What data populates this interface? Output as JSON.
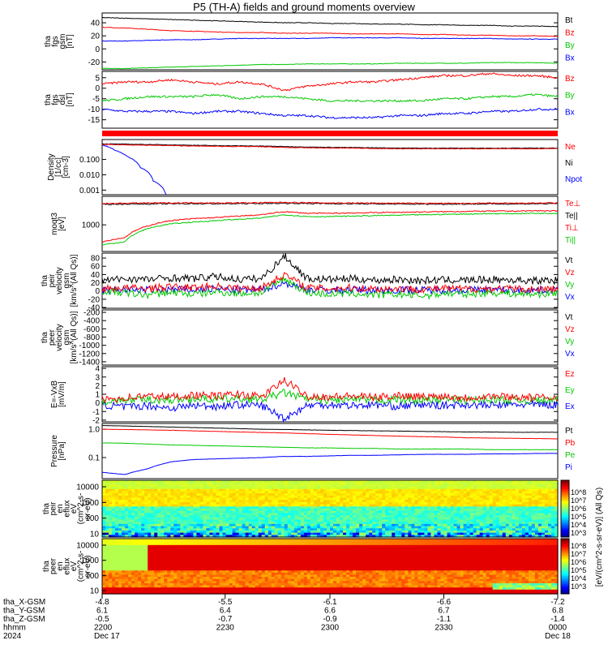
{
  "title": "P5 (TH-A) fields and ground moments overview",
  "colors": {
    "black": "#000000",
    "red": "#ff0000",
    "green": "#00c800",
    "blue": "#0000ff",
    "frame": "#000000"
  },
  "chart_data": [
    {
      "type": "line",
      "panel": "fgs-gsm",
      "ylabel": [
        "tha",
        "fgs",
        "gsm",
        "[nT]"
      ],
      "ylim": [
        -32,
        55
      ],
      "yticks": [
        40,
        20,
        0,
        -20
      ],
      "series": [
        {
          "name": "Bt",
          "color": "red_black",
          "values": [
            48,
            47,
            46,
            45,
            44,
            43,
            42,
            41,
            40,
            40,
            39,
            39,
            38,
            38,
            37,
            37,
            36,
            36,
            35,
            35,
            34
          ]
        },
        {
          "name": "Bz",
          "values": [
            33,
            32,
            30,
            28,
            27,
            26,
            25,
            25,
            24,
            24,
            24,
            23,
            23,
            23,
            22,
            22,
            21,
            21,
            20,
            20,
            19
          ]
        },
        {
          "name": "By",
          "values": [
            -30,
            -30,
            -29,
            -28,
            -27,
            -26,
            -25,
            -24,
            -24,
            -23,
            -23,
            -23,
            -23,
            -22,
            -22,
            -22,
            -22,
            -21,
            -21,
            -21,
            -22
          ]
        },
        {
          "name": "Bx",
          "values": [
            12,
            12,
            13,
            14,
            14,
            15,
            16,
            16,
            16,
            16,
            17,
            17,
            17,
            17,
            16,
            16,
            16,
            16,
            15,
            15,
            15
          ]
        }
      ]
    },
    {
      "type": "line",
      "panel": "fgs-dsl",
      "ylabel": [
        "tha",
        "fgs",
        "dsl",
        "[nT]"
      ],
      "ylim": [
        -19,
        8
      ],
      "yticks": [
        5,
        0,
        -5,
        -10,
        -15
      ],
      "series": [
        {
          "name": "Bz",
          "values": [
            2,
            3,
            3,
            4,
            3,
            2,
            3,
            2,
            -1,
            1,
            2,
            3,
            3,
            4,
            5,
            6,
            6,
            7,
            6,
            6,
            5
          ]
        },
        {
          "name": "By",
          "values": [
            -6,
            -5,
            -4,
            -4,
            -4,
            -3,
            -5,
            -4,
            -4,
            -5,
            -6,
            -6,
            -6,
            -6,
            -6,
            -5,
            -5,
            -4,
            -4,
            -3,
            -4
          ]
        },
        {
          "name": "Bx",
          "values": [
            -10,
            -11,
            -11,
            -11,
            -12,
            -11,
            -11,
            -12,
            -13,
            -13,
            -14,
            -14,
            -14,
            -13,
            -13,
            -12,
            -12,
            -11,
            -11,
            -10,
            -10
          ]
        }
      ]
    },
    {
      "type": "line",
      "panel": "density",
      "ylabel": [
        "Density",
        "[1/cc]",
        "[cm-3]"
      ],
      "yscale": "log",
      "ylim": [
        0.0005,
        2.0
      ],
      "ytick_labels": [
        "0.100",
        "0.010",
        "0.001"
      ],
      "series": [
        {
          "name": "Ne",
          "values": [
            0.95,
            0.9,
            0.85,
            0.8,
            0.75,
            0.72,
            0.7,
            0.68,
            0.6,
            0.58,
            0.55,
            0.55,
            0.52,
            0.5,
            0.5,
            0.5,
            0.5,
            0.5,
            0.5,
            0.5,
            0.52
          ]
        },
        {
          "name": "Ni",
          "values": [
            1.05,
            1.0,
            0.95,
            0.9,
            0.85,
            0.8,
            0.78,
            0.75,
            0.7,
            0.65,
            0.62,
            0.6,
            0.58,
            0.56,
            0.55,
            0.55,
            0.55,
            0.55,
            0.55,
            0.55,
            0.55
          ]
        },
        {
          "name": "Npot",
          "values": [
            0.9,
            0.4,
            0.15,
            0.03,
            0.004,
            0.0005
          ]
        }
      ]
    },
    {
      "type": "line",
      "panel": "temperature",
      "ylabel": [
        "moqt3",
        "[eV]"
      ],
      "yscale": "log",
      "ylim": [
        80,
        15000
      ],
      "ytick_labels": [
        "1000"
      ],
      "series": [
        {
          "name": "Te⊥",
          "values": [
            7500,
            7800,
            8000,
            8000,
            8200,
            8000,
            8100,
            8200,
            8500,
            8200,
            8000,
            8000,
            7900,
            7800,
            7800,
            7700,
            7700,
            7800,
            7800,
            7900,
            8000
          ]
        },
        {
          "name": "Te||",
          "values": [
            7000,
            7200,
            7300,
            7400,
            7500,
            7400,
            7500,
            7600,
            7800,
            7600,
            7500,
            7400,
            7300,
            7200,
            7200,
            7200,
            7200,
            7300,
            7300,
            7400,
            7500
          ]
        },
        {
          "name": "Ti⊥",
          "values": [
            200,
            300,
            900,
            1500,
            1800,
            2000,
            2300,
            2600,
            3500,
            3000,
            3000,
            3100,
            3200,
            3300,
            3400,
            3500,
            3600,
            3700,
            3700,
            3800,
            3800
          ]
        },
        {
          "name": "Ti||",
          "values": [
            150,
            200,
            700,
            1100,
            1300,
            1500,
            1700,
            1900,
            2600,
            2200,
            2200,
            2300,
            2400,
            2500,
            2600,
            2700,
            2800,
            2900,
            2900,
            3000,
            3000
          ]
        }
      ]
    },
    {
      "type": "line",
      "panel": "peir-velocity",
      "ylabel": [
        "tha",
        "peir",
        "velocity",
        "gsm",
        "[km/s^(All Qs)]"
      ],
      "ylim": [
        -42,
        92
      ],
      "yticks": [
        80,
        60,
        40,
        20,
        0,
        -20,
        -40
      ],
      "series": [
        {
          "name": "Vt",
          "values": [
            25,
            30,
            28,
            32,
            30,
            35,
            28,
            30,
            85,
            30,
            28,
            30,
            26,
            28,
            25,
            27,
            26,
            28,
            27,
            25,
            26
          ]
        },
        {
          "name": "Vz",
          "values": [
            5,
            8,
            6,
            10,
            8,
            12,
            6,
            8,
            40,
            8,
            6,
            8,
            5,
            6,
            4,
            6,
            5,
            6,
            5,
            4,
            5
          ]
        },
        {
          "name": "Vy",
          "values": [
            0,
            -5,
            -10,
            -3,
            -8,
            -2,
            -6,
            -4,
            30,
            -4,
            -8,
            -6,
            -10,
            -8,
            -12,
            -6,
            -8,
            -4,
            -6,
            -8,
            -5
          ]
        },
        {
          "name": "Vx",
          "values": [
            2,
            3,
            2,
            4,
            3,
            5,
            2,
            3,
            20,
            3,
            2,
            3,
            2,
            3,
            2,
            3,
            2,
            3,
            2,
            2,
            2
          ]
        }
      ]
    },
    {
      "type": "line",
      "panel": "peer-velocity",
      "ylabel": [
        "tha",
        "peer",
        "velocity",
        "gsm",
        "[km/s^(All Qs)]"
      ],
      "ylim": [
        -1480,
        -140
      ],
      "yticks": [
        -200,
        -400,
        -600,
        -800,
        -1000,
        -1200,
        -1400
      ],
      "series": [
        {
          "name": "Vt",
          "values": []
        },
        {
          "name": "Vz",
          "values": []
        },
        {
          "name": "Vy",
          "values": []
        },
        {
          "name": "Vx",
          "values": []
        }
      ]
    },
    {
      "type": "line",
      "panel": "efield",
      "ylabel": [
        "E=-VxB",
        "[mV/m]"
      ],
      "ylim": [
        -2.2,
        4.2
      ],
      "yticks": [
        4,
        3,
        2,
        1,
        0,
        -1,
        -2
      ],
      "series": [
        {
          "name": "Ez",
          "values": [
            0.4,
            0.6,
            0.8,
            0.7,
            0.9,
            0.8,
            1.0,
            0.7,
            2.6,
            0.8,
            0.7,
            0.8,
            0.6,
            0.9,
            0.7,
            0.8,
            0.6,
            0.8,
            0.7,
            0.6,
            0.7
          ]
        },
        {
          "name": "Ey",
          "values": [
            0.2,
            0.3,
            0.4,
            0.3,
            0.5,
            0.4,
            0.5,
            0.4,
            1.2,
            0.4,
            0.3,
            0.4,
            0.3,
            0.4,
            0.3,
            0.4,
            0.3,
            0.4,
            0.3,
            0.3,
            0.3
          ]
        },
        {
          "name": "Ex",
          "values": [
            -0.2,
            -0.5,
            -0.3,
            -0.6,
            -0.3,
            -0.4,
            -0.2,
            -0.3,
            -1.8,
            -0.3,
            -0.2,
            -0.3,
            -0.2,
            -0.4,
            -0.2,
            -0.3,
            -0.2,
            -0.3,
            -0.2,
            -0.2,
            -0.2
          ]
        }
      ]
    },
    {
      "type": "line",
      "panel": "pressure",
      "ylabel": [
        "Pressure",
        "[nPa]"
      ],
      "yscale": "log",
      "ylim": [
        0.018,
        1.6
      ],
      "ytick_labels": [
        "1.0",
        "0.1"
      ],
      "series": [
        {
          "name": "Pt",
          "values": [
            1.35,
            1.3,
            1.25,
            1.2,
            1.15,
            1.1,
            1.05,
            1.0,
            0.98,
            0.95,
            0.92,
            0.9,
            0.88,
            0.86,
            0.84,
            0.82,
            0.8,
            0.8,
            0.78,
            0.78,
            0.78
          ]
        },
        {
          "name": "Pb",
          "values": [
            1.0,
            0.98,
            0.95,
            0.92,
            0.88,
            0.84,
            0.8,
            0.77,
            0.74,
            0.7,
            0.66,
            0.63,
            0.6,
            0.57,
            0.55,
            0.53,
            0.5,
            0.49,
            0.48,
            0.47,
            0.46
          ]
        },
        {
          "name": "Pe",
          "values": [
            0.33,
            0.32,
            0.3,
            0.28,
            0.27,
            0.26,
            0.25,
            0.24,
            0.23,
            0.22,
            0.22,
            0.21,
            0.21,
            0.2,
            0.2,
            0.2,
            0.2,
            0.19,
            0.19,
            0.19,
            0.19
          ]
        },
        {
          "name": "Pi",
          "values": [
            0.03,
            0.025,
            0.04,
            0.07,
            0.085,
            0.09,
            0.095,
            0.1,
            0.11,
            0.11,
            0.115,
            0.12,
            0.12,
            0.125,
            0.13,
            0.13,
            0.13,
            0.135,
            0.135,
            0.14,
            0.14
          ]
        }
      ]
    },
    {
      "type": "heatmap",
      "panel": "peir-eflux",
      "ylabel": [
        "tha",
        "peir",
        "en",
        "eflux",
        "eV",
        "(cm^2-s-",
        "sr-eV)"
      ],
      "yscale": "log",
      "ytick_labels": [
        "10000",
        "1000",
        "100",
        "10"
      ]
    },
    {
      "type": "heatmap",
      "panel": "peer-eflux",
      "ylabel": [
        "tha",
        "peer",
        "en",
        "eflux",
        "eV",
        "(cm^2-s-",
        "sr-eV)"
      ],
      "yscale": "log",
      "ytick_labels": [
        "10000",
        "1000",
        "100",
        "10"
      ]
    }
  ],
  "colorbar": {
    "label": "[eV/(cm^2-s-sr-eV)] (All Qs)",
    "top_ticks": [
      "10^8",
      "10^7",
      "10^6",
      "10^5",
      "10^4",
      "10^3"
    ],
    "bottom_ticks": [
      "10^8",
      "10^7",
      "10^6",
      "10^5",
      "10^4",
      "10^3"
    ]
  },
  "xaxis": {
    "rows": [
      {
        "label": "tha_X-GSM",
        "values": [
          "-4.8",
          "-5.5",
          "-6.1",
          "-6.6",
          "-7.2"
        ]
      },
      {
        "label": "tha_Y-GSM",
        "values": [
          "6.1",
          "6.4",
          "6.6",
          "6.7",
          "6.8"
        ]
      },
      {
        "label": "tha_Z-GSM",
        "values": [
          "-0.5",
          "-0.7",
          "-0.9",
          "-1.1",
          "-1.4"
        ]
      },
      {
        "label": "hhmm",
        "values": [
          "2200",
          "2230",
          "2300",
          "2330",
          "0000"
        ]
      },
      {
        "label": "2024",
        "values": [
          "Dec 17",
          "",
          "",
          "",
          "Dec 18"
        ]
      }
    ]
  }
}
